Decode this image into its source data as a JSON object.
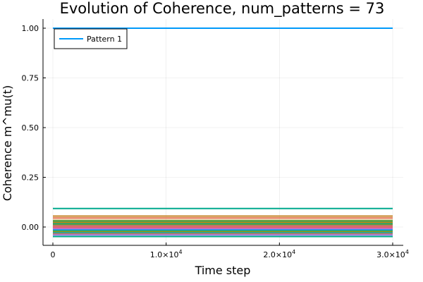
{
  "chart_data": {
    "type": "line",
    "title": "Evolution of Coherence, num_patterns = 73",
    "xlabel": "Time step",
    "ylabel": "Coherence m^mu(t)",
    "xlim": [
      0,
      30000
    ],
    "ylim": [
      -0.055,
      1.0
    ],
    "x_ticks": [
      {
        "value": 0,
        "mantissa": "0",
        "exponent": ""
      },
      {
        "value": 10000,
        "mantissa": "1.0×10",
        "exponent": "4"
      },
      {
        "value": 20000,
        "mantissa": "2.0×10",
        "exponent": "4"
      },
      {
        "value": 30000,
        "mantissa": "3.0×10",
        "exponent": "4"
      }
    ],
    "y_ticks": [
      {
        "value": 0.0,
        "label": "0.00"
      },
      {
        "value": 0.25,
        "label": "0.25"
      },
      {
        "value": 0.5,
        "label": "0.50"
      },
      {
        "value": 0.75,
        "label": "0.75"
      },
      {
        "value": 1.0,
        "label": "1.00"
      }
    ],
    "grid": true,
    "legend_position": "top-left",
    "legend": [
      "Pattern 1"
    ],
    "series": [
      {
        "name": "Pattern 1",
        "color": "#009AFA",
        "values": [
          1.0,
          1.0
        ]
      },
      {
        "color": "#00A98D",
        "values": [
          0.093,
          0.093
        ]
      },
      {
        "color": "#C68225",
        "values": [
          0.055,
          0.055
        ]
      },
      {
        "color": "#E26F46",
        "values": [
          0.045,
          0.045
        ]
      },
      {
        "color": "#3EA44E",
        "values": [
          0.03,
          0.03
        ]
      },
      {
        "color": "#AC8D18",
        "values": [
          0.02,
          0.02
        ]
      },
      {
        "color": "#00A98D",
        "values": [
          0.015,
          0.015
        ]
      },
      {
        "color": "#8E971E",
        "values": [
          0.01,
          0.01
        ]
      },
      {
        "color": "#D4619D",
        "values": [
          0.005,
          0.005
        ]
      },
      {
        "color": "#E26F46",
        "values": [
          0.0,
          0.0
        ]
      },
      {
        "color": "#D4619D",
        "values": [
          -0.005,
          -0.005
        ]
      },
      {
        "color": "#C271D2",
        "values": [
          -0.01,
          -0.01
        ]
      },
      {
        "color": "#009AFA",
        "values": [
          -0.015,
          -0.015
        ]
      },
      {
        "color": "#3EA44E",
        "values": [
          -0.02,
          -0.02
        ]
      },
      {
        "color": "#8E971E",
        "values": [
          -0.025,
          -0.025
        ]
      },
      {
        "color": "#00A8CB",
        "values": [
          -0.03,
          -0.03
        ]
      },
      {
        "color": "#E26F46",
        "values": [
          -0.035,
          -0.035
        ]
      },
      {
        "color": "#9B7FE9",
        "values": [
          -0.04,
          -0.04
        ]
      },
      {
        "color": "#00A98D",
        "values": [
          -0.048,
          -0.048
        ]
      }
    ],
    "x": [
      0,
      30000
    ],
    "band": {
      "from": -0.02,
      "to": 0.03,
      "colors": [
        "#D4619D",
        "#C68225",
        "#3EA44E",
        "#00A8CB",
        "#E26F46",
        "#9B7FE9",
        "#8E971E",
        "#00A98D",
        "#D4619D",
        "#AC8D18"
      ]
    }
  }
}
